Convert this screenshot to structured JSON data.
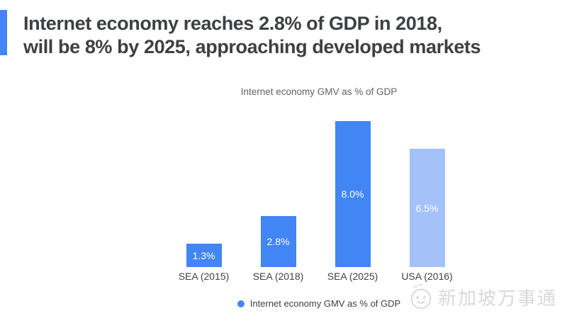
{
  "header": {
    "accent_color": "#4285F4",
    "title_lines": [
      "Internet economy reaches 2.8% of GDP in 2018,",
      "will be 8% by 2025, approaching developed markets"
    ]
  },
  "chart_data": {
    "type": "bar",
    "title": "Internet economy GMV as % of GDP",
    "categories": [
      "SEA (2015)",
      "SEA (2018)",
      "SEA (2025)",
      "USA (2016)"
    ],
    "values": [
      1.3,
      2.8,
      8.0,
      6.5
    ],
    "value_labels": [
      "1.3%",
      "2.8%",
      "8.0%",
      "6.5%"
    ],
    "bar_colors": [
      "#4285F4",
      "#4285F4",
      "#4285F4",
      "#A4C2F9"
    ],
    "xlabel": "",
    "ylabel": "",
    "ylim": [
      0,
      8.0
    ],
    "grid": false,
    "legend": {
      "position": "bottom",
      "marker_color": "#4285F4",
      "label": "Internet economy GMV as % of GDP"
    }
  },
  "watermark": {
    "text": "新加坡万事通",
    "color": "#d9d9d9"
  }
}
